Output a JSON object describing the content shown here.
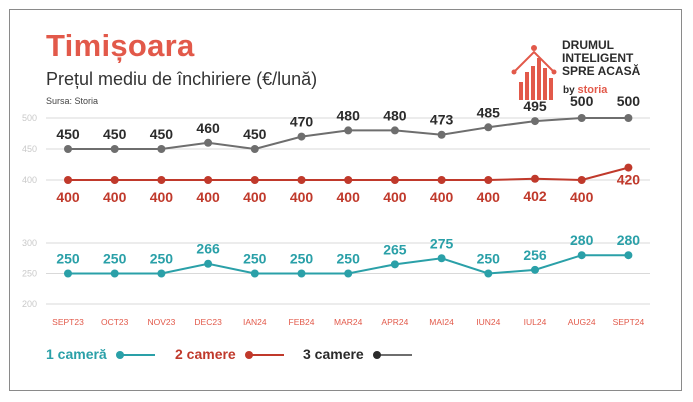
{
  "header": {
    "title": "Timișoara",
    "subtitle": "Prețul mediu de închiriere (€/lună)",
    "source": "Sursa: Storia"
  },
  "brand": {
    "line1": "DRUMUL",
    "line2": "INTELIGENT",
    "line3": "SPRE ACASĂ",
    "by": "by",
    "name": "storia"
  },
  "colors": {
    "one_room": "#2aa0a8",
    "two_rooms": "#c0392b",
    "three_rooms": "#6e6e6e",
    "axis_text": "#e2594a",
    "grid": "#d9d9d9",
    "title": "#e2594a"
  },
  "chart_data": {
    "type": "line",
    "categories": [
      "SEPT23",
      "OCT23",
      "NOV23",
      "DEC23",
      "IAN24",
      "FEB24",
      "MAR24",
      "APR24",
      "MAI24",
      "IUN24",
      "IUL24",
      "AUG24",
      "SEPT24"
    ],
    "ylim": [
      200,
      500
    ],
    "yticks": [
      200,
      250,
      300,
      400,
      450,
      500
    ],
    "grid": true,
    "legend_position": "bottom-left",
    "series": [
      {
        "name": "1 cameră",
        "values": [
          250,
          250,
          250,
          266,
          250,
          250,
          250,
          265,
          275,
          250,
          256,
          280,
          280
        ]
      },
      {
        "name": "2 camere",
        "values": [
          400,
          400,
          400,
          400,
          400,
          400,
          400,
          400,
          400,
          400,
          402,
          400,
          420
        ]
      },
      {
        "name": "3 camere",
        "values": [
          450,
          450,
          450,
          460,
          450,
          470,
          480,
          480,
          473,
          485,
          495,
          500,
          500
        ]
      }
    ]
  },
  "legend": {
    "one_room": "1 cameră",
    "two_rooms": "2 camere",
    "three_rooms": "3 camere"
  }
}
